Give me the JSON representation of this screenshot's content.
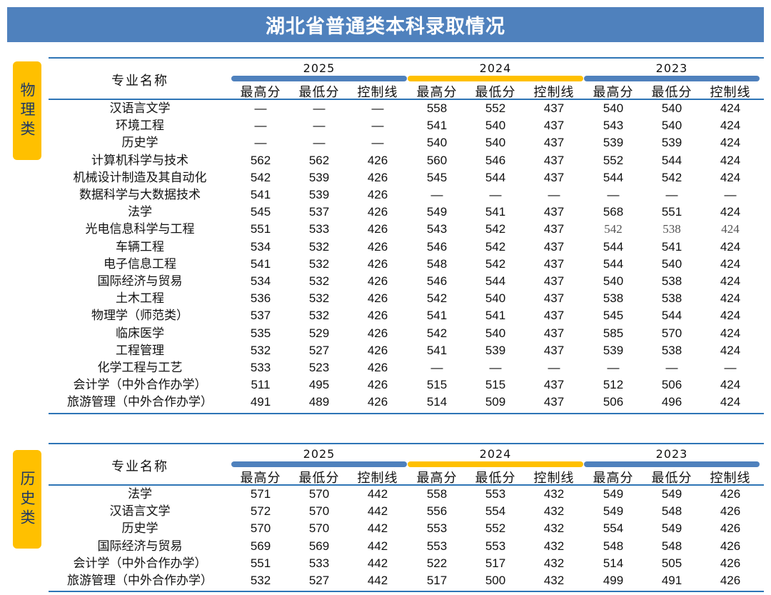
{
  "title": "湖北省普通类本科录取情况",
  "physics": {
    "side_label": "物理类",
    "major_header": "专业名称",
    "years": [
      "2025",
      "2024",
      "2023"
    ],
    "sub_headers": [
      "最高分",
      "最低分",
      "控制线"
    ],
    "rows": [
      {
        "name": "汉语言文学",
        "v": [
          "—",
          "—",
          "—",
          "558",
          "552",
          "437",
          "540",
          "540",
          "424"
        ]
      },
      {
        "name": "环境工程",
        "v": [
          "—",
          "—",
          "—",
          "541",
          "540",
          "437",
          "543",
          "540",
          "424"
        ]
      },
      {
        "name": "历史学",
        "v": [
          "—",
          "—",
          "—",
          "540",
          "540",
          "437",
          "539",
          "539",
          "424"
        ]
      },
      {
        "name": "计算机科学与技术",
        "v": [
          "562",
          "562",
          "426",
          "560",
          "546",
          "437",
          "552",
          "544",
          "424"
        ]
      },
      {
        "name": "机械设计制造及其自动化",
        "v": [
          "542",
          "539",
          "426",
          "545",
          "544",
          "437",
          "544",
          "542",
          "424"
        ]
      },
      {
        "name": "数据科学与大数据技术",
        "v": [
          "541",
          "539",
          "426",
          "—",
          "—",
          "—",
          "—",
          "—",
          "—"
        ]
      },
      {
        "name": "法学",
        "v": [
          "545",
          "537",
          "426",
          "549",
          "541",
          "437",
          "568",
          "551",
          "424"
        ]
      },
      {
        "name": "光电信息科学与工程",
        "v": [
          "551",
          "533",
          "426",
          "543",
          "542",
          "437",
          "542",
          "538",
          "424"
        ]
      },
      {
        "name": "车辆工程",
        "v": [
          "534",
          "532",
          "426",
          "546",
          "542",
          "437",
          "544",
          "541",
          "424"
        ]
      },
      {
        "name": "电子信息工程",
        "v": [
          "541",
          "532",
          "426",
          "548",
          "542",
          "437",
          "544",
          "540",
          "424"
        ]
      },
      {
        "name": "国际经济与贸易",
        "v": [
          "534",
          "532",
          "426",
          "546",
          "544",
          "437",
          "540",
          "538",
          "424"
        ]
      },
      {
        "name": "土木工程",
        "v": [
          "536",
          "532",
          "426",
          "542",
          "540",
          "437",
          "538",
          "538",
          "424"
        ]
      },
      {
        "name": "物理学（师范类）",
        "v": [
          "537",
          "532",
          "426",
          "541",
          "541",
          "437",
          "545",
          "544",
          "424"
        ]
      },
      {
        "name": "临床医学",
        "v": [
          "535",
          "529",
          "426",
          "542",
          "540",
          "437",
          "585",
          "570",
          "424"
        ]
      },
      {
        "name": "工程管理",
        "v": [
          "532",
          "527",
          "426",
          "541",
          "539",
          "437",
          "539",
          "538",
          "424"
        ]
      },
      {
        "name": "化学工程与工艺",
        "v": [
          "533",
          "523",
          "426",
          "—",
          "—",
          "—",
          "—",
          "—",
          "—"
        ]
      },
      {
        "name": "会计学（中外合作办学）",
        "v": [
          "511",
          "495",
          "426",
          "515",
          "515",
          "437",
          "512",
          "506",
          "424"
        ]
      },
      {
        "name": "旅游管理（中外合作办学）",
        "v": [
          "491",
          "489",
          "426",
          "514",
          "509",
          "437",
          "506",
          "496",
          "424"
        ]
      }
    ]
  },
  "history": {
    "side_label": "历史类",
    "major_header": "专业名称",
    "years": [
      "2025",
      "2024",
      "2023"
    ],
    "sub_headers": [
      "最高分",
      "最低分",
      "控制线"
    ],
    "rows": [
      {
        "name": "法学",
        "v": [
          "571",
          "570",
          "442",
          "558",
          "553",
          "432",
          "549",
          "549",
          "426"
        ]
      },
      {
        "name": "汉语言文学",
        "v": [
          "572",
          "570",
          "442",
          "556",
          "554",
          "432",
          "549",
          "548",
          "426"
        ]
      },
      {
        "name": "历史学",
        "v": [
          "570",
          "570",
          "442",
          "553",
          "552",
          "432",
          "554",
          "549",
          "426"
        ]
      },
      {
        "name": "国际经济与贸易",
        "v": [
          "569",
          "569",
          "442",
          "553",
          "553",
          "432",
          "548",
          "548",
          "426"
        ]
      },
      {
        "name": "会计学（中外合作办学）",
        "v": [
          "551",
          "533",
          "442",
          "522",
          "517",
          "432",
          "514",
          "505",
          "426"
        ]
      },
      {
        "name": "旅游管理（中外合作办学）",
        "v": [
          "532",
          "527",
          "442",
          "517",
          "500",
          "432",
          "499",
          "491",
          "426"
        ]
      }
    ]
  },
  "colors": {
    "banner": "#4f81bd",
    "side_label_bg": "#ffc000",
    "bar_2025": "#4f81bd",
    "bar_2024": "#ffc000",
    "bar_2023": "#4f81bd"
  }
}
